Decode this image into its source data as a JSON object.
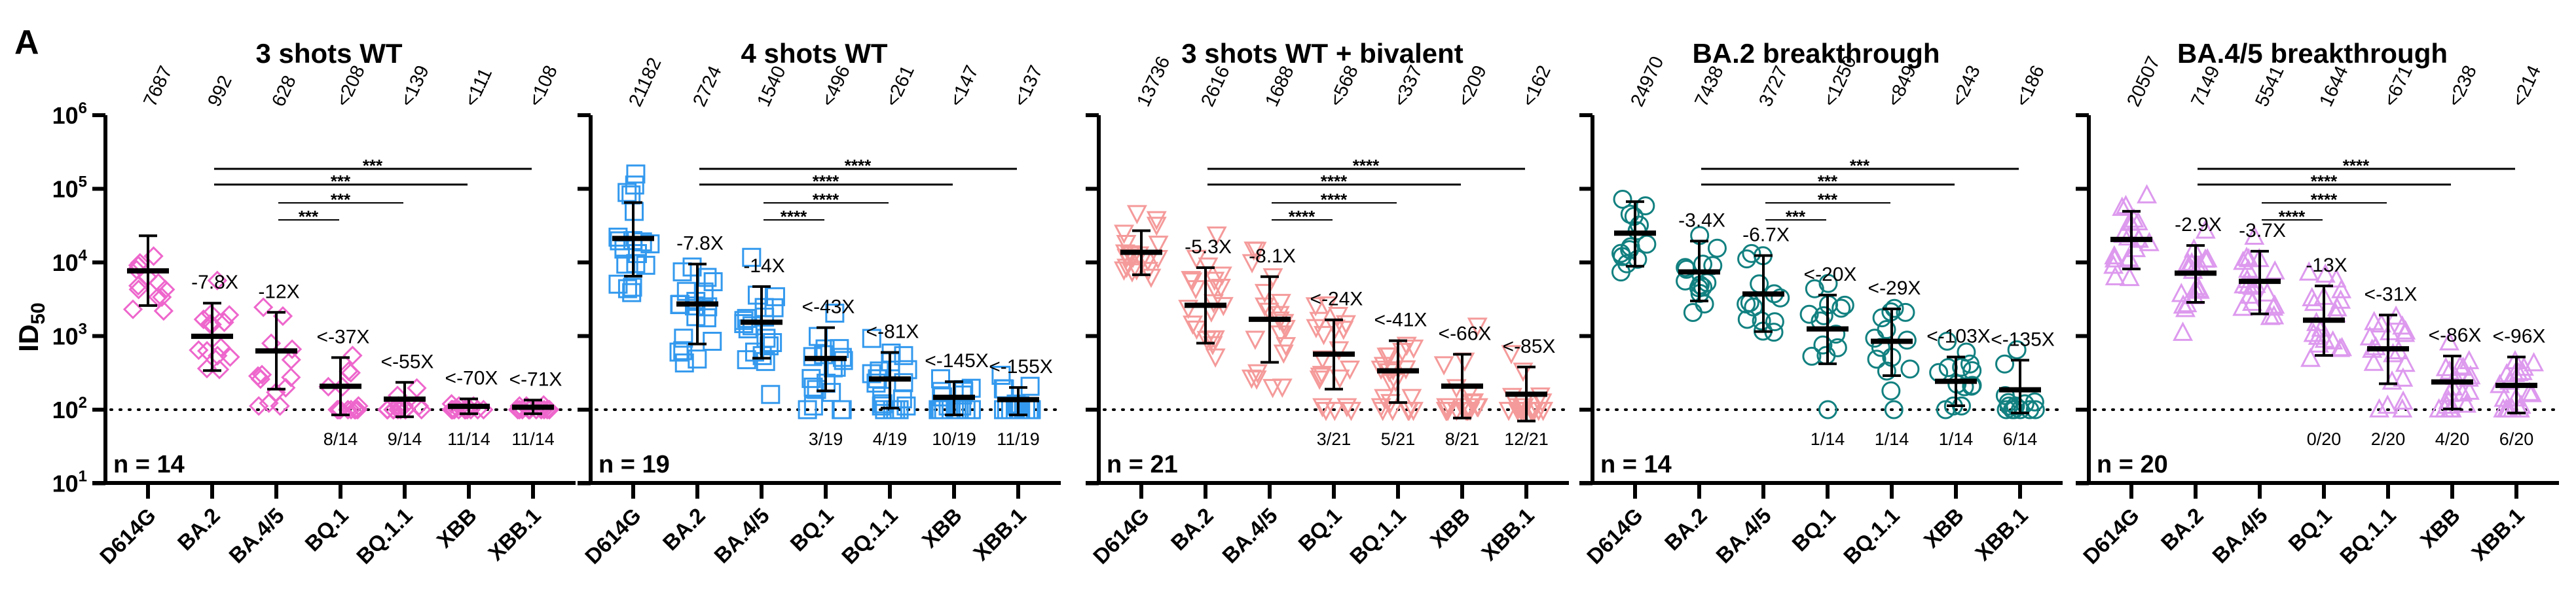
{
  "chart_data": {
    "type": "scatter",
    "figure_label": "A",
    "ylabel": "ID50",
    "yscale": "log",
    "ylim": [
      10,
      1000000
    ],
    "yticks": [
      "10",
      "10",
      "10",
      "10",
      "10",
      "10"
    ],
    "ytick_exponents": [
      "1",
      "2",
      "3",
      "4",
      "5",
      "6"
    ],
    "lod": 100,
    "categories": [
      "D614G",
      "BA.2",
      "BA.4/5",
      "BQ.1",
      "BQ.1.1",
      "XBB",
      "XBB.1"
    ],
    "panels": [
      {
        "title": "3 shots WT",
        "n_label": "n = 14",
        "n": 14,
        "color": "#ee66cc",
        "marker": "diamond",
        "gmt": [
          7687,
          992,
          628,
          208,
          139,
          111,
          108
        ],
        "gmt_labels": [
          "7687",
          "992",
          "628",
          "<208",
          "<139",
          "<111",
          "<108"
        ],
        "error_low": [
          2600,
          340,
          190,
          85,
          80,
          88,
          88
        ],
        "error_high": [
          23000,
          2800,
          2100,
          510,
          235,
          140,
          135
        ],
        "fold": [
          "",
          "-7.8X",
          "-12X",
          "<-37X",
          "<-55X",
          "<-70X",
          "<-71X"
        ],
        "below_lod": [
          "",
          "",
          "",
          "8/14",
          "9/14",
          "11/14",
          "11/14"
        ],
        "sig": [
          {
            "from": 1,
            "to": 6,
            "label": "***"
          },
          {
            "from": 1,
            "to": 5,
            "label": "***"
          },
          {
            "from": 2,
            "to": 4,
            "label": "***"
          },
          {
            "from": 2,
            "to": 3,
            "label": "***"
          }
        ]
      },
      {
        "title": "4 shots WT",
        "n_label": "n = 19",
        "n": 19,
        "color": "#3399ee",
        "marker": "square",
        "gmt": [
          21182,
          2724,
          1540,
          496,
          261,
          147,
          137
        ],
        "gmt_labels": [
          "21182",
          "2724",
          "1540",
          "<496",
          "<261",
          "<147",
          "<137"
        ],
        "error_low": [
          6500,
          780,
          500,
          180,
          105,
          85,
          85
        ],
        "error_high": [
          65000,
          9500,
          4700,
          1300,
          600,
          240,
          200
        ],
        "fold": [
          "",
          "-7.8X",
          "-14X",
          "<-43X",
          "<-81X",
          "<-145X",
          "<-155X"
        ],
        "below_lod": [
          "",
          "",
          "",
          "3/19",
          "4/19",
          "10/19",
          "11/19"
        ],
        "sig": [
          {
            "from": 1,
            "to": 6,
            "label": "****"
          },
          {
            "from": 1,
            "to": 5,
            "label": "****"
          },
          {
            "from": 2,
            "to": 4,
            "label": "****"
          },
          {
            "from": 2,
            "to": 3,
            "label": "****"
          }
        ]
      },
      {
        "title": "3 shots WT + bivalent",
        "n_label": "n = 21",
        "n": 21,
        "color": "#f59a9a",
        "marker": "triangle-down",
        "gmt": [
          13736,
          2616,
          1688,
          568,
          337,
          209,
          162
        ],
        "gmt_labels": [
          "13736",
          "2616",
          "1688",
          "<568",
          "<337",
          "<209",
          "<162"
        ],
        "error_low": [
          6800,
          800,
          440,
          190,
          125,
          77,
          70
        ],
        "error_high": [
          27000,
          8500,
          6400,
          1660,
          865,
          565,
          380
        ],
        "fold": [
          "",
          "-5.3X",
          "-8.1X",
          "<-24X",
          "<-41X",
          "<-66X",
          "<-85X"
        ],
        "below_lod": [
          "",
          "",
          "",
          "3/21",
          "5/21",
          "8/21",
          "12/21"
        ],
        "sig": [
          {
            "from": 1,
            "to": 6,
            "label": "****"
          },
          {
            "from": 1,
            "to": 5,
            "label": "****"
          },
          {
            "from": 2,
            "to": 4,
            "label": "****"
          },
          {
            "from": 2,
            "to": 3,
            "label": "****"
          }
        ]
      },
      {
        "title": "BA.2 breakthrough",
        "n_label": "n = 14",
        "n": 14,
        "color": "#128080",
        "marker": "circle",
        "gmt": [
          24970,
          7438,
          3727,
          1250,
          849,
          243,
          186
        ],
        "gmt_labels": [
          "24970",
          "7438",
          "3727",
          "<1250",
          "<849",
          "<243",
          "<186"
        ],
        "error_low": [
          8900,
          3000,
          1150,
          420,
          290,
          113,
          90
        ],
        "error_high": [
          67000,
          19500,
          12400,
          3600,
          2340,
          520,
          470
        ],
        "fold": [
          "",
          "-3.4X",
          "-6.7X",
          "<-20X",
          "<-29X",
          "<-103X",
          "<-135X"
        ],
        "below_lod": [
          "",
          "",
          "",
          "1/14",
          "1/14",
          "1/14",
          "6/14"
        ],
        "sig": [
          {
            "from": 1,
            "to": 6,
            "label": "***"
          },
          {
            "from": 1,
            "to": 5,
            "label": "***"
          },
          {
            "from": 2,
            "to": 4,
            "label": "***"
          },
          {
            "from": 2,
            "to": 3,
            "label": "***"
          }
        ]
      },
      {
        "title": "BA.4/5 breakthrough",
        "n_label": "n = 20",
        "n": 20,
        "color": "#dd99ee",
        "marker": "triangle",
        "gmt": [
          20507,
          7149,
          5541,
          1644,
          671,
          238,
          214
        ],
        "gmt_labels": [
          "20507",
          "7149",
          "5541",
          "1644",
          "<671",
          "<238",
          "<214"
        ],
        "error_low": [
          8150,
          2870,
          2000,
          545,
          225,
          102,
          90
        ],
        "error_high": [
          49500,
          17000,
          14200,
          4800,
          1930,
          535,
          520
        ],
        "fold": [
          "",
          "-2.9X",
          "-3.7X",
          "-13X",
          "<-31X",
          "<-86X",
          "<-96X"
        ],
        "below_lod": [
          "",
          "",
          "",
          "0/20",
          "2/20",
          "4/20",
          "6/20"
        ],
        "sig": [
          {
            "from": 1,
            "to": 6,
            "label": "****"
          },
          {
            "from": 1,
            "to": 5,
            "label": "****"
          },
          {
            "from": 2,
            "to": 4,
            "label": "****"
          },
          {
            "from": 2,
            "to": 3,
            "label": "****"
          }
        ]
      }
    ]
  }
}
